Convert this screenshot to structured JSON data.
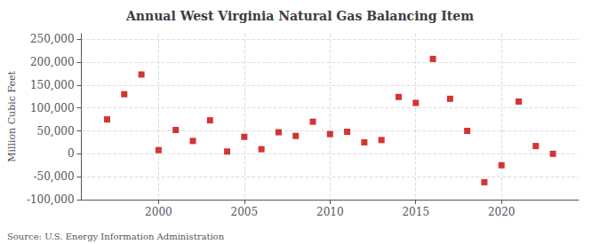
{
  "chart_data": {
    "type": "scatter",
    "title": "Annual West Virginia Natural Gas Balancing Item",
    "ylabel": "Million Cubic Feet",
    "annotations": [
      "Source: U.S. Energy Information Administration"
    ],
    "x": [
      1997,
      1998,
      1999,
      2000,
      2001,
      2002,
      2003,
      2004,
      2005,
      2006,
      2007,
      2008,
      2009,
      2010,
      2011,
      2012,
      2013,
      2014,
      2015,
      2016,
      2017,
      2018,
      2019,
      2020,
      2021,
      2022,
      2023
    ],
    "values": [
      75000,
      130000,
      173000,
      8000,
      52000,
      28000,
      73000,
      5000,
      37000,
      10000,
      47000,
      39000,
      70000,
      43000,
      48000,
      25000,
      30000,
      124000,
      111000,
      207000,
      120000,
      50000,
      -62000,
      -25000,
      114000,
      17000,
      0
    ],
    "color": "#cc0000",
    "marker": "square",
    "xlim": [
      1995.5,
      2024.5
    ],
    "xticks": [
      2000,
      2005,
      2010,
      2015,
      2020
    ],
    "ylim": [
      -100000,
      262000
    ],
    "yticks": [
      {
        "value": -100000,
        "label": "-100,000"
      },
      {
        "value": -50000,
        "label": "-50,000"
      },
      0,
      {
        "value": 50000,
        "label": "50,000"
      },
      {
        "value": 100000,
        "label": "100,000"
      },
      {
        "value": 150000,
        "label": "150,000"
      },
      {
        "value": 200000,
        "label": "200,000"
      },
      {
        "value": 250000,
        "label": "250,000"
      }
    ],
    "grid": true
  }
}
